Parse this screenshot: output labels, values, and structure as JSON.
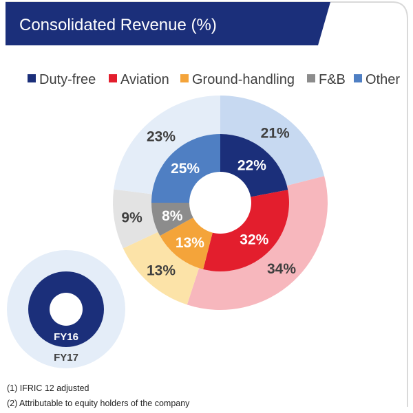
{
  "chart_data": {
    "type": "pie",
    "title": "Consolidated Revenue (%)",
    "legend_position": "top",
    "categories": [
      "Duty-free",
      "Aviation",
      "Ground-handling",
      "F&B",
      "Other"
    ],
    "series": [
      {
        "name": "FY16",
        "ring": "inner",
        "values": [
          22,
          32,
          13,
          8,
          25
        ]
      },
      {
        "name": "FY17",
        "ring": "outer",
        "values": [
          21,
          34,
          13,
          9,
          23
        ]
      }
    ],
    "value_labels": {
      "FY16": [
        "22%",
        "32%",
        "13%",
        "8%",
        "25%"
      ],
      "FY17": [
        "21%",
        "34%",
        "13%",
        "9%",
        "23%"
      ]
    },
    "colors": {
      "Duty-free": {
        "inner": "#1b2f7a",
        "outer": "#c7d9f1",
        "legend": "#1b2f7a"
      },
      "Aviation": {
        "inner": "#e31e2d",
        "outer": "#f7b7bd",
        "legend": "#e31e2d"
      },
      "Ground-handling": {
        "inner": "#f4a43a",
        "outer": "#fce3a8",
        "legend": "#f4a43a"
      },
      "F&B": {
        "inner": "#8c8c8c",
        "outer": "#e3e3e3",
        "legend": "#8c8c8c"
      },
      "Other": {
        "inner": "#4f7fc3",
        "outer": "#e4edf8",
        "legend": "#4f7fc3"
      }
    }
  },
  "ring_key": {
    "inner_label": "FY16",
    "outer_label": "FY17"
  },
  "footnotes": [
    "(1) IFRIC 12 adjusted",
    "(2) Attributable to equity holders of the company"
  ],
  "theme": {
    "header_color": "#1b2f7a",
    "key_inner_color": "#1b2f7a",
    "key_outer_color": "#e4edf8",
    "border_color": "#d9d9d9"
  }
}
